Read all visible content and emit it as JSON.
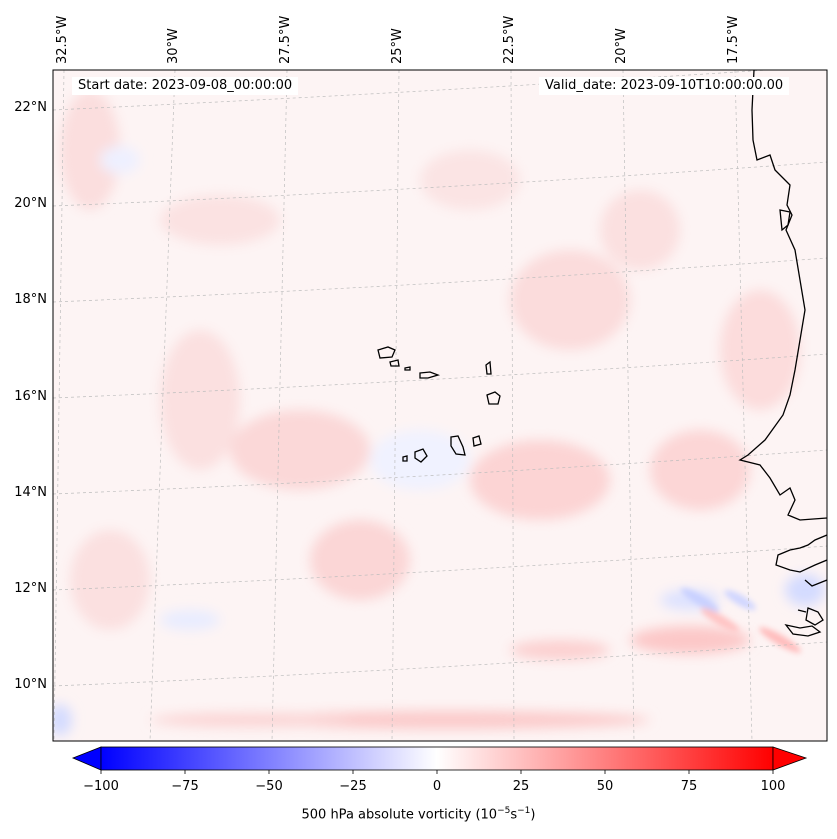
{
  "map": {
    "top_axis_labels": [
      "32.5°W",
      "30°W",
      "27.5°W",
      "25°W",
      "22.5°W",
      "20°W",
      "17.5°W"
    ],
    "left_axis_labels": [
      "22°N",
      "20°N",
      "18°N",
      "16°N",
      "14°N",
      "12°N",
      "10°N"
    ],
    "start_date": "Start date: 2023-09-08_00:00:00",
    "valid_date": "Valid_date: 2023-09-10T10:00:00.00"
  },
  "colorbar": {
    "ticks": [
      "−100",
      "−75",
      "−50",
      "−25",
      "0",
      "25",
      "50",
      "75",
      "100"
    ],
    "label_main": "500 hPa absolute vorticity (10",
    "label_exp1": "−5",
    "label_mid": "s",
    "label_exp2": "−1",
    "label_end": ")",
    "min_color": "#0000ff",
    "zero_color": "#ffffff",
    "max_color": "#ff0000"
  }
}
